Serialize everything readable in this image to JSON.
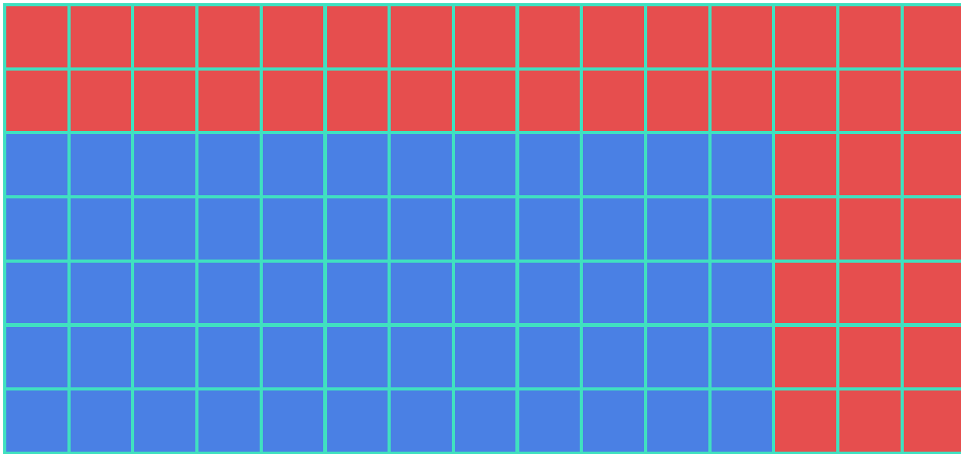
{
  "board": {
    "rows": 7,
    "columns": 15,
    "colors": {
      "grid": "#40E0C0",
      "red": "#E64E4E",
      "blue": "#4A80E4"
    },
    "cells": [
      [
        "red",
        "red",
        "red",
        "red",
        "red",
        "red",
        "red",
        "red",
        "red",
        "red",
        "red",
        "red",
        "red",
        "red",
        "red"
      ],
      [
        "red",
        "red",
        "red",
        "red",
        "red",
        "red",
        "red",
        "red",
        "red",
        "red",
        "red",
        "red",
        "red",
        "red",
        "red"
      ],
      [
        "blue",
        "blue",
        "blue",
        "blue",
        "blue",
        "blue",
        "blue",
        "blue",
        "blue",
        "blue",
        "blue",
        "blue",
        "red",
        "red",
        "red"
      ],
      [
        "blue",
        "blue",
        "blue",
        "blue",
        "blue",
        "blue",
        "blue",
        "blue",
        "blue",
        "blue",
        "blue",
        "blue",
        "red",
        "red",
        "red"
      ],
      [
        "blue",
        "blue",
        "blue",
        "blue",
        "blue",
        "blue",
        "blue",
        "blue",
        "blue",
        "blue",
        "blue",
        "blue",
        "red",
        "red",
        "red"
      ],
      [
        "blue",
        "blue",
        "blue",
        "blue",
        "blue",
        "blue",
        "blue",
        "blue",
        "blue",
        "blue",
        "blue",
        "blue",
        "red",
        "red",
        "red"
      ],
      [
        "blue",
        "blue",
        "blue",
        "blue",
        "blue",
        "blue",
        "blue",
        "blue",
        "blue",
        "blue",
        "blue",
        "blue",
        "red",
        "red",
        "red"
      ]
    ]
  }
}
